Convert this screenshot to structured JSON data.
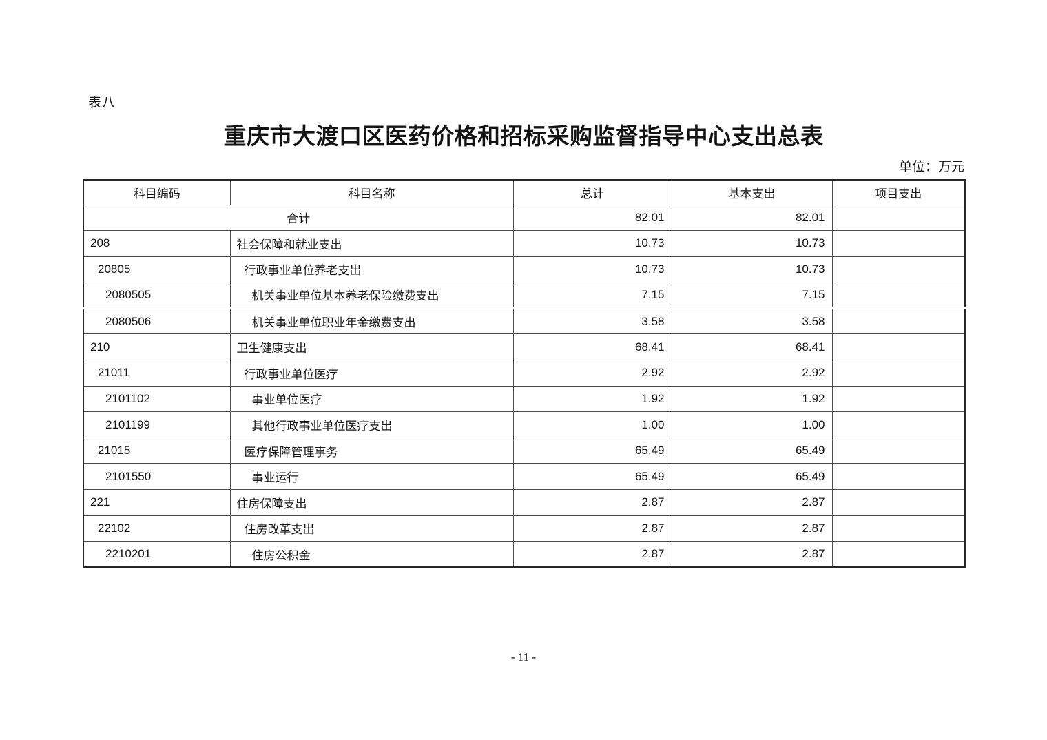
{
  "page": {
    "table_label": "表八",
    "title": "重庆市大渡口区医药价格和招标采购监督指导中心支出总表",
    "unit_note": "单位：万元",
    "page_number": "- 11 -"
  },
  "table": {
    "headers": [
      "科目编码",
      "科目名称",
      "总计",
      "基本支出",
      "项目支出"
    ],
    "total_row": {
      "name": "合计",
      "total": "82.01",
      "basic": "82.01",
      "project": ""
    },
    "rows": [
      {
        "code": "208",
        "level": 1,
        "name": "社会保障和就业支出",
        "total": "10.73",
        "basic": "10.73",
        "project": ""
      },
      {
        "code": "20805",
        "level": 2,
        "name": "行政事业单位养老支出",
        "total": "10.73",
        "basic": "10.73",
        "project": ""
      },
      {
        "code": "2080505",
        "level": 3,
        "name": "机关事业单位基本养老保险缴费支出",
        "total": "7.15",
        "basic": "7.15",
        "project": ""
      },
      {
        "code": "2080506",
        "level": 3,
        "name": "机关事业单位职业年金缴费支出",
        "total": "3.58",
        "basic": "3.58",
        "project": ""
      },
      {
        "code": "210",
        "level": 1,
        "name": "卫生健康支出",
        "total": "68.41",
        "basic": "68.41",
        "project": ""
      },
      {
        "code": "21011",
        "level": 2,
        "name": "行政事业单位医疗",
        "total": "2.92",
        "basic": "2.92",
        "project": ""
      },
      {
        "code": "2101102",
        "level": 3,
        "name": "事业单位医疗",
        "total": "1.92",
        "basic": "1.92",
        "project": ""
      },
      {
        "code": "2101199",
        "level": 3,
        "name": "其他行政事业单位医疗支出",
        "total": "1.00",
        "basic": "1.00",
        "project": ""
      },
      {
        "code": "21015",
        "level": 2,
        "name": "医疗保障管理事务",
        "total": "65.49",
        "basic": "65.49",
        "project": ""
      },
      {
        "code": "2101550",
        "level": 3,
        "name": "事业运行",
        "total": "65.49",
        "basic": "65.49",
        "project": ""
      },
      {
        "code": "221",
        "level": 1,
        "name": "住房保障支出",
        "total": "2.87",
        "basic": "2.87",
        "project": ""
      },
      {
        "code": "22102",
        "level": 2,
        "name": "住房改革支出",
        "total": "2.87",
        "basic": "2.87",
        "project": ""
      },
      {
        "code": "2210201",
        "level": 3,
        "name": "住房公积金",
        "total": "2.87",
        "basic": "2.87",
        "project": ""
      }
    ]
  }
}
